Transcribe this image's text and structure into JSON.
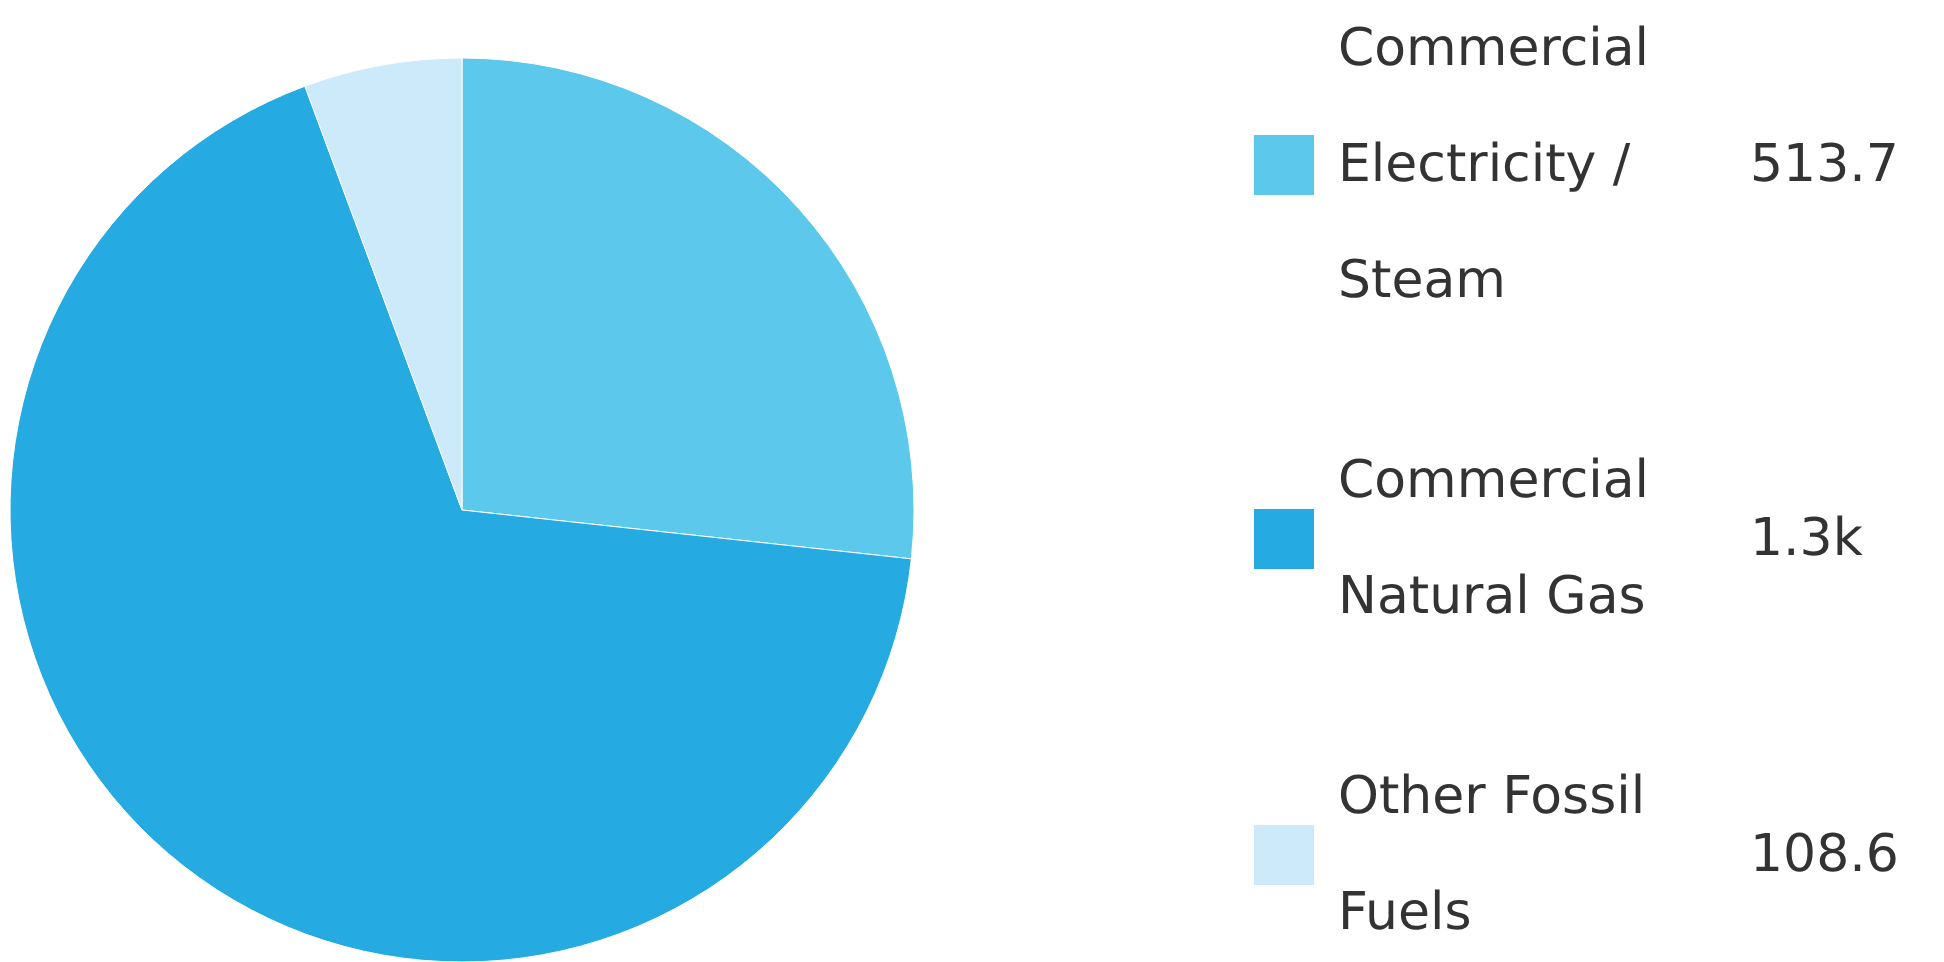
{
  "chart_data": {
    "type": "pie",
    "categories": [
      "Commercial Electricity / Steam",
      "Commercial Natural Gas",
      "Other Fossil Fuels"
    ],
    "values": [
      513.7,
      1300,
      108.6
    ],
    "value_labels": [
      "513.7",
      "1.3k",
      "108.6"
    ],
    "colors": [
      "#5bc8ec",
      "#25aae1",
      "#cdeafa"
    ],
    "legend": "right"
  }
}
